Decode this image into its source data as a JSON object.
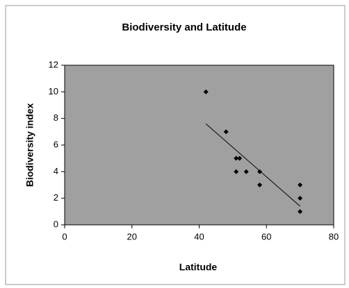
{
  "chart_data": {
    "type": "scatter",
    "title": "Biodiversity and Latitude",
    "x_label": "Latitude",
    "y_label": "Biodiversity index",
    "x": [
      42,
      48,
      51,
      52,
      51,
      54,
      58,
      58,
      70,
      70,
      70
    ],
    "values": [
      10,
      7,
      5,
      5,
      4,
      4,
      4,
      3,
      3,
      2,
      1
    ],
    "color": "#000000",
    "plot_background": "#a0a0a0",
    "trendline": {
      "x": [
        42,
        70
      ],
      "y": [
        7.6,
        1.4
      ]
    },
    "xlim": [
      0,
      80
    ],
    "xticks": [
      0,
      20,
      40,
      60,
      80
    ],
    "ylim": [
      0,
      12
    ],
    "yticks": [
      0,
      2,
      4,
      6,
      8,
      10,
      12
    ],
    "grid": false
  }
}
